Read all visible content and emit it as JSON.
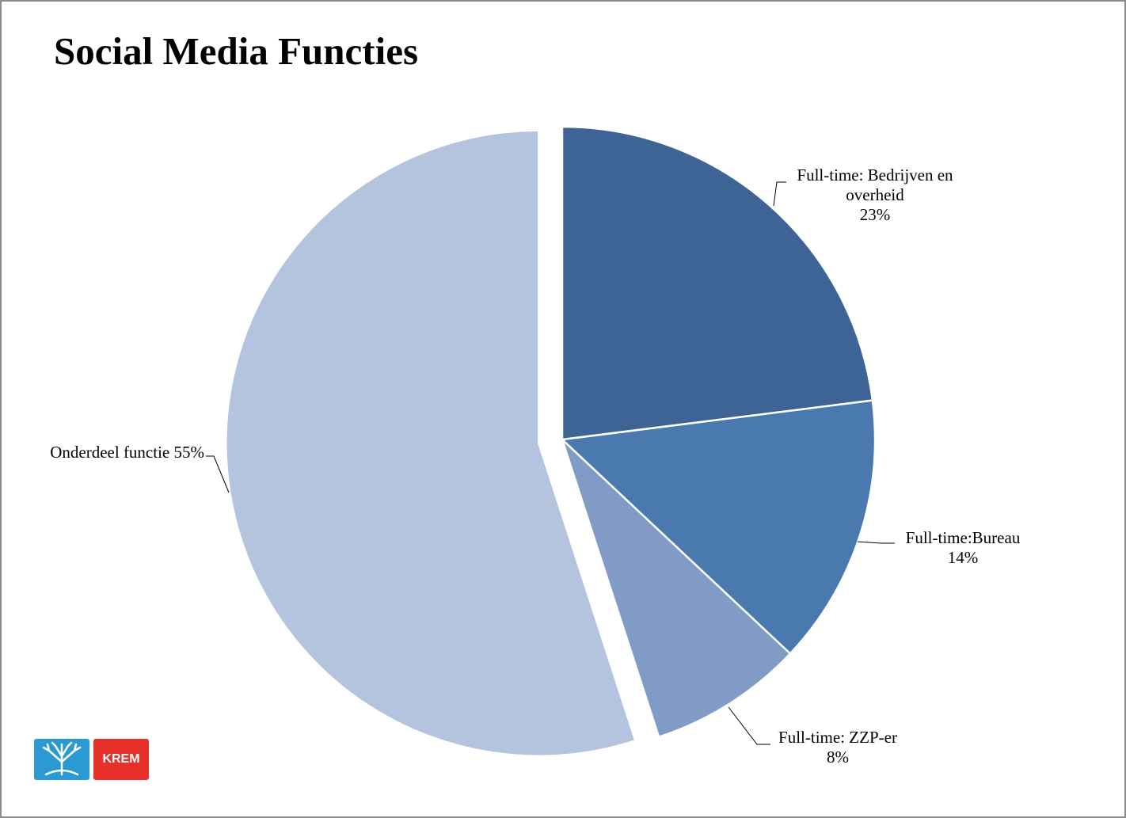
{
  "chart_data": {
    "type": "pie",
    "title": "Social Media Functies",
    "categories": [
      "Full-time: Bedrijven en overheid",
      "Full-time:Bureau",
      "Full-time: ZZP-er",
      "Onderdeel functie"
    ],
    "values": [
      23,
      14,
      8,
      55
    ],
    "value_labels": [
      "23%",
      "14%",
      "8%",
      "55%"
    ],
    "colors": [
      "#3d6495",
      "#4a79b0",
      "#7f9bc6",
      "#b5c4de"
    ]
  },
  "logo": "KREM"
}
